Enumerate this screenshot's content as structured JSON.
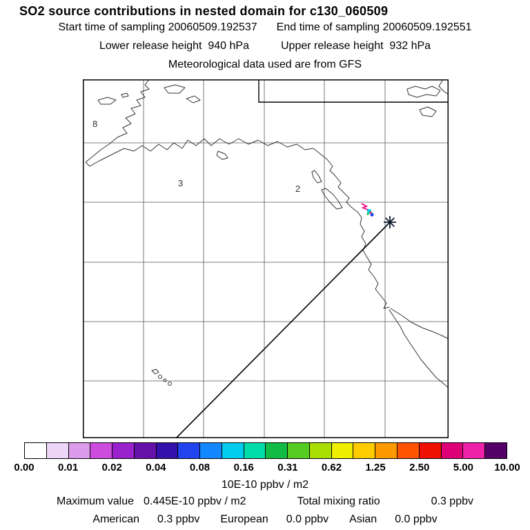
{
  "header": {
    "title": "SO2 source contributions in nested domain for c130_060509",
    "start_time": "Start time of sampling 20060509.192537",
    "end_time": "End time of sampling 20060509.192551",
    "lower_release": "Lower release height  940 hPa",
    "upper_release": "Upper release height  932 hPa",
    "met_source": "Meteorological data used are from GFS"
  },
  "map": {
    "labels": [
      {
        "text": "8"
      },
      {
        "text": "3"
      },
      {
        "text": "2"
      }
    ]
  },
  "colorbar": {
    "units": "10E-10 ppbv / m2",
    "tick_labels": [
      "0.00",
      "0.01",
      "0.02",
      "0.04",
      "0.08",
      "0.16",
      "0.31",
      "0.62",
      "1.25",
      "2.50",
      "5.00",
      "10.00"
    ],
    "colors": [
      "#ffffff",
      "#ecd6f7",
      "#dd9ceb",
      "#cc4ddd",
      "#9922cc",
      "#6611aa",
      "#3311aa",
      "#2244ee",
      "#1188ff",
      "#00ccee",
      "#00ddaa",
      "#11bb44",
      "#55cc22",
      "#aadd00",
      "#eeee00",
      "#ffcc00",
      "#ff9900",
      "#ff5500",
      "#ee1100",
      "#dd0077",
      "#ee22aa",
      "#550066"
    ]
  },
  "footer": {
    "max_label": "Maximum value",
    "max_value": "0.445E-10 ppbv / m2",
    "mixing_label": "Total mixing ratio",
    "mixing_value": "0.3 ppbv",
    "contributions": [
      {
        "region": "American",
        "value": "0.3 ppbv"
      },
      {
        "region": "European",
        "value": "0.0 ppbv"
      },
      {
        "region": "Asian",
        "value": "0.0 ppbv"
      }
    ]
  },
  "chart_data": {
    "type": "heatmap",
    "title": "SO2 source contributions in nested domain for c130_060509",
    "subtitle_lines": [
      "Start time of sampling 20060509.192537",
      "End time of sampling 20060509.192551",
      "Lower release height  940 hPa",
      "Upper release height  932 hPa",
      "Meteorological data used are from GFS"
    ],
    "colorbar_units": "10E-10 ppbv / m2",
    "colorbar_tick_labels": [
      "0.00",
      "0.01",
      "0.02",
      "0.04",
      "0.08",
      "0.16",
      "0.31",
      "0.62",
      "1.25",
      "2.50",
      "5.00",
      "10.00"
    ],
    "legend_position": "bottom",
    "grid": true,
    "annotations": {
      "maximum_value": "0.445E-10 ppbv / m2",
      "total_mixing_ratio": "0.3 ppbv",
      "source_contributions": [
        {
          "region": "American",
          "value": "0.3 ppbv"
        },
        {
          "region": "European",
          "value": "0.0 ppbv"
        },
        {
          "region": "Asian",
          "value": "0.0 ppbv"
        }
      ],
      "map_point_labels": [
        "8",
        "3",
        "2"
      ]
    }
  }
}
